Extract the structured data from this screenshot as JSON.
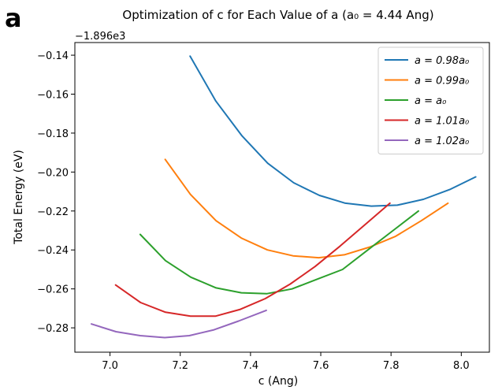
{
  "panel_label": "a",
  "chart_data": {
    "type": "line",
    "title": "Optimization of c for Each Value of a (a₀ = 4.44 Ang)",
    "xlabel": "c (Ang)",
    "ylabel": "Total Energy (eV)",
    "offset_label": "−1.896e3",
    "xlim": [
      6.9,
      8.08
    ],
    "ylim": [
      -0.2925,
      -0.1335
    ],
    "xticks": [
      7.0,
      7.2,
      7.4,
      7.6,
      7.8,
      8.0
    ],
    "xtick_labels": [
      "7.0",
      "7.2",
      "7.4",
      "7.6",
      "7.8",
      "8.0"
    ],
    "yticks": [
      -0.28,
      -0.26,
      -0.24,
      -0.22,
      -0.2,
      -0.18,
      -0.16,
      -0.14
    ],
    "ytick_labels": [
      "−0.28",
      "−0.26",
      "−0.24",
      "−0.22",
      "−0.20",
      "−0.18",
      "−0.16",
      "−0.14"
    ],
    "grid": false,
    "legend_position": "top-right",
    "series": [
      {
        "name": "a = 0.98a₀",
        "color": "#1f77b4",
        "x": [
          7.228,
          7.301,
          7.376,
          7.449,
          7.523,
          7.596,
          7.67,
          7.744,
          7.818,
          7.892,
          7.967,
          8.041
        ],
        "y": [
          -0.1405,
          -0.1635,
          -0.1815,
          -0.1955,
          -0.2055,
          -0.212,
          -0.216,
          -0.2175,
          -0.217,
          -0.214,
          -0.209,
          -0.2025
        ]
      },
      {
        "name": "a = 0.99a₀",
        "color": "#ff7f0e",
        "x": [
          7.157,
          7.229,
          7.302,
          7.375,
          7.448,
          7.521,
          7.594,
          7.667,
          7.74,
          7.813,
          7.886,
          7.962
        ],
        "y": [
          -0.1935,
          -0.2115,
          -0.225,
          -0.234,
          -0.24,
          -0.243,
          -0.244,
          -0.2425,
          -0.2385,
          -0.233,
          -0.225,
          -0.216
        ]
      },
      {
        "name": "a = a₀",
        "color": "#2ca02c",
        "x": [
          7.086,
          7.158,
          7.23,
          7.302,
          7.374,
          7.446,
          7.518,
          7.59,
          7.662,
          7.734,
          7.806,
          7.878
        ],
        "y": [
          -0.232,
          -0.2455,
          -0.254,
          -0.2595,
          -0.262,
          -0.2625,
          -0.26,
          -0.255,
          -0.25,
          -0.24,
          -0.23,
          -0.22
        ]
      },
      {
        "name": "a = 1.01a₀",
        "color": "#d62728",
        "x": [
          7.016,
          7.087,
          7.158,
          7.229,
          7.3,
          7.371,
          7.442,
          7.513,
          7.584,
          7.655,
          7.726,
          7.797
        ],
        "y": [
          -0.258,
          -0.267,
          -0.272,
          -0.274,
          -0.274,
          -0.2705,
          -0.265,
          -0.2575,
          -0.2485,
          -0.238,
          -0.227,
          -0.216
        ]
      },
      {
        "name": "a = 1.02a₀",
        "color": "#9467bd",
        "x": [
          6.947,
          7.017,
          7.086,
          7.156,
          7.226,
          7.296,
          7.366,
          7.445
        ],
        "y": [
          -0.278,
          -0.282,
          -0.284,
          -0.285,
          -0.284,
          -0.281,
          -0.2765,
          -0.271
        ]
      }
    ]
  }
}
